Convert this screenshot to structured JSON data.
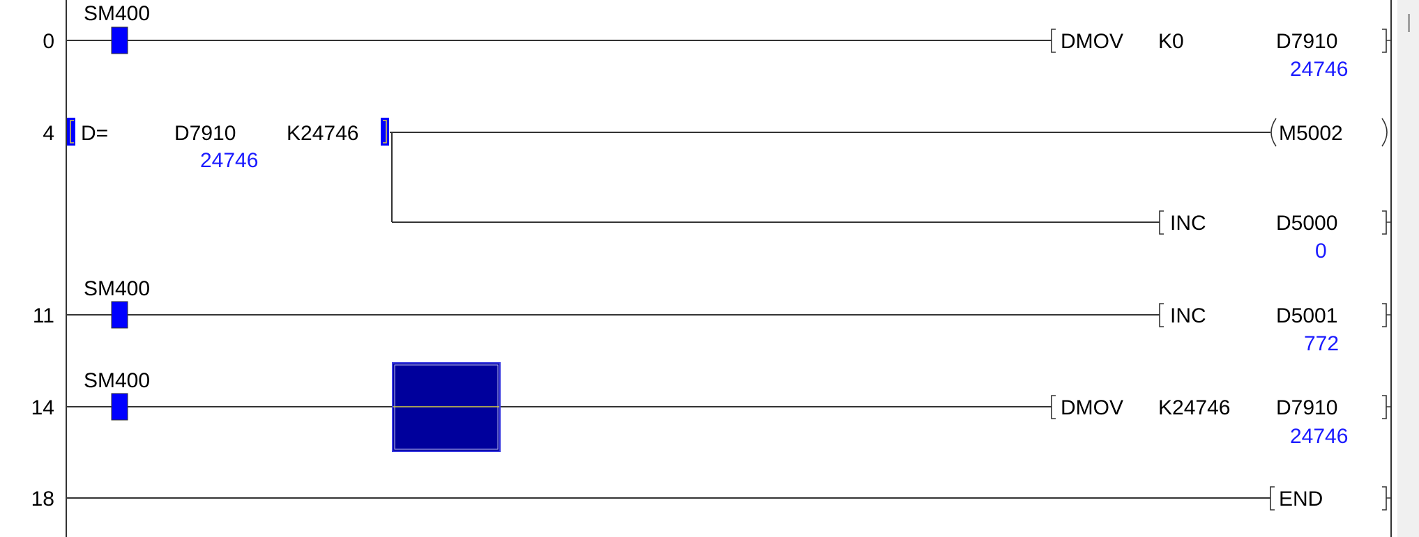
{
  "colors": {
    "contact_on": "#0000ff",
    "value": "#1a1aff",
    "cursor": "#00009c",
    "wire": "#333333"
  },
  "rungs": [
    {
      "step": "0",
      "contact": "SM400",
      "instruction": "DMOV",
      "src": "K0",
      "dst": "D7910",
      "dst_value": "24746"
    },
    {
      "step": "4",
      "compare_op": "D=",
      "operand1": "D7910",
      "operand1_value": "24746",
      "operand2": "K24746",
      "coil": "M5002",
      "instruction": "INC",
      "dst": "D5000",
      "dst_value": "0"
    },
    {
      "step": "11",
      "contact": "SM400",
      "instruction": "INC",
      "dst": "D5001",
      "dst_value": "772"
    },
    {
      "step": "14",
      "contact": "SM400",
      "instruction": "DMOV",
      "src": "K24746",
      "dst": "D7910",
      "dst_value": "24746"
    },
    {
      "step": "18",
      "instruction": "END"
    }
  ]
}
